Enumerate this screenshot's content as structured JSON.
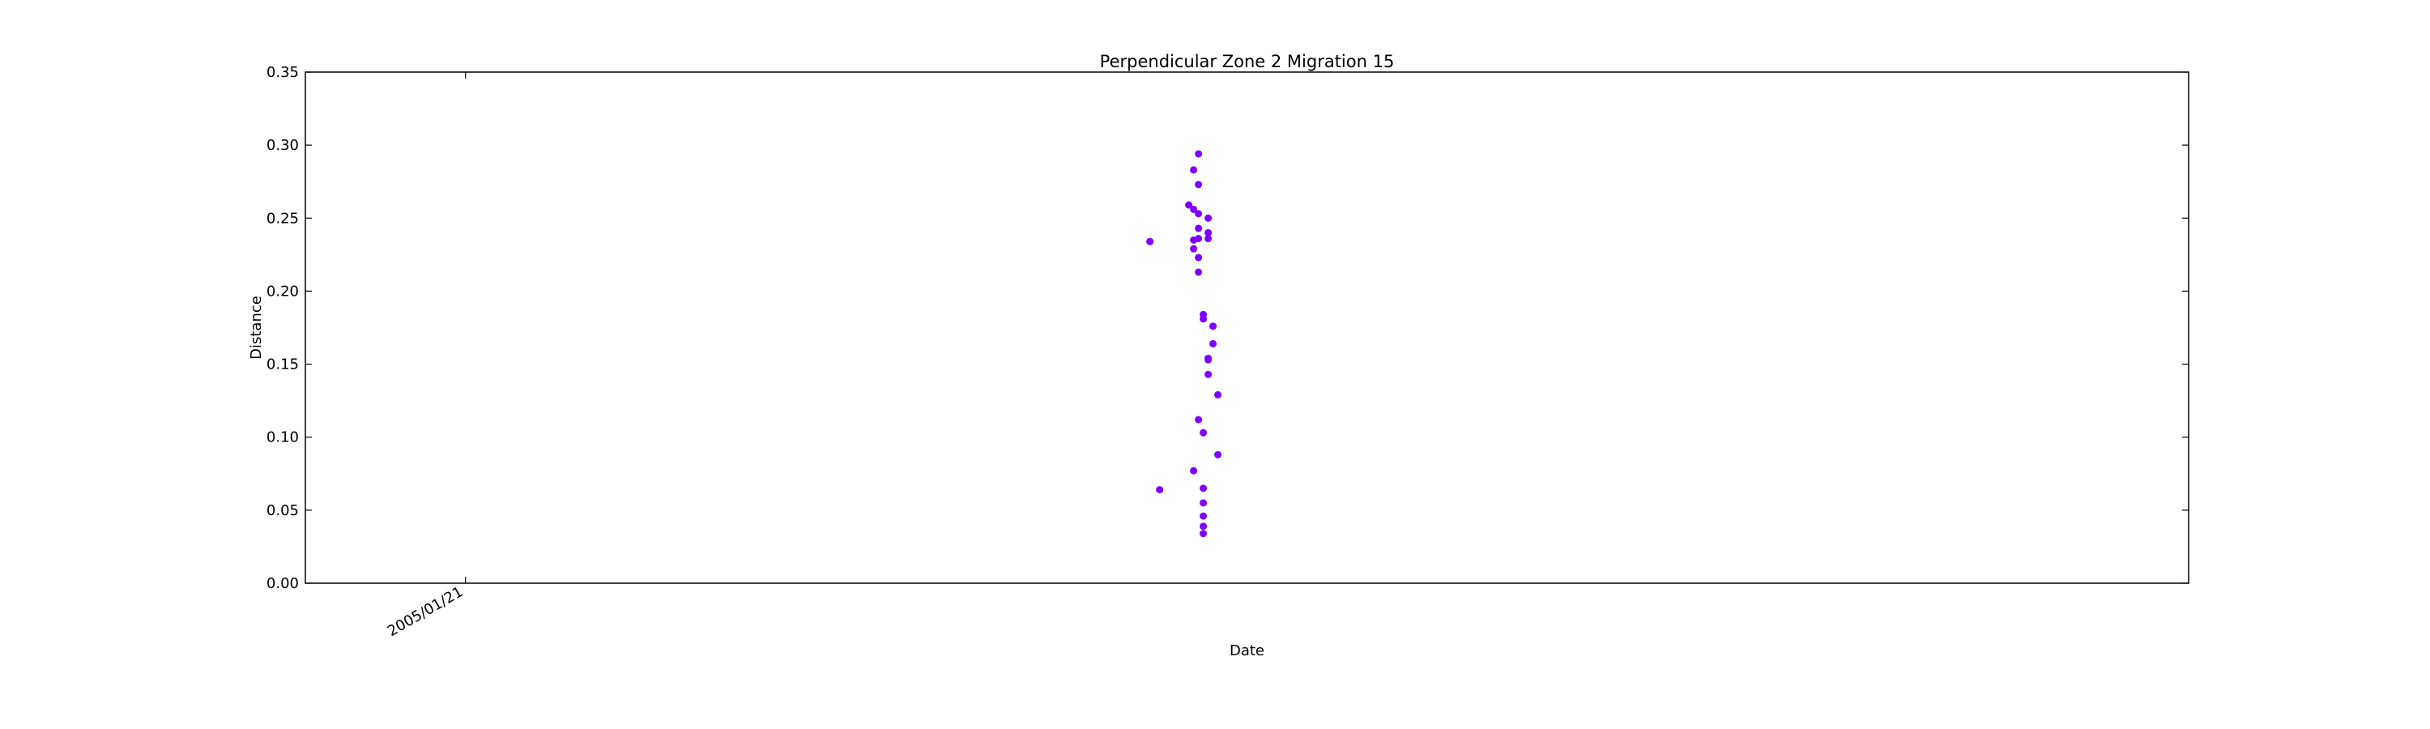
{
  "chart_data": {
    "type": "scatter",
    "title": "Perpendicular Zone 2 Migration 15",
    "xlabel": "Date",
    "ylabel": "Distance",
    "ylim": [
      0,
      0.35
    ],
    "y_ticks": [
      "0.00",
      "0.05",
      "0.10",
      "0.15",
      "0.20",
      "0.25",
      "0.30",
      "0.35"
    ],
    "x_ticks": [
      {
        "date": "2005-01-21",
        "label": "2005/01/21"
      }
    ],
    "xlim": [
      "2004-12-19",
      "2006-01-11"
    ],
    "grid": false,
    "marker_color": "#7f00ff",
    "points": [
      {
        "x": "2005-06-11",
        "y": 0.234
      },
      {
        "x": "2005-06-13",
        "y": 0.064
      },
      {
        "x": "2005-06-19",
        "y": 0.259
      },
      {
        "x": "2005-06-20",
        "y": 0.283
      },
      {
        "x": "2005-06-20",
        "y": 0.077
      },
      {
        "x": "2005-06-20",
        "y": 0.235
      },
      {
        "x": "2005-06-20",
        "y": 0.229
      },
      {
        "x": "2005-06-20",
        "y": 0.256
      },
      {
        "x": "2005-06-21",
        "y": 0.253
      },
      {
        "x": "2005-06-21",
        "y": 0.273
      },
      {
        "x": "2005-06-21",
        "y": 0.294
      },
      {
        "x": "2005-06-21",
        "y": 0.112
      },
      {
        "x": "2005-06-21",
        "y": 0.213
      },
      {
        "x": "2005-06-21",
        "y": 0.243
      },
      {
        "x": "2005-06-21",
        "y": 0.236
      },
      {
        "x": "2005-06-21",
        "y": 0.223
      },
      {
        "x": "2005-06-22",
        "y": 0.181
      },
      {
        "x": "2005-06-22",
        "y": 0.184
      },
      {
        "x": "2005-06-22",
        "y": 0.103
      },
      {
        "x": "2005-06-22",
        "y": 0.065
      },
      {
        "x": "2005-06-22",
        "y": 0.055
      },
      {
        "x": "2005-06-22",
        "y": 0.046
      },
      {
        "x": "2005-06-22",
        "y": 0.039
      },
      {
        "x": "2005-06-22",
        "y": 0.034
      },
      {
        "x": "2005-06-23",
        "y": 0.154
      },
      {
        "x": "2005-06-23",
        "y": 0.153
      },
      {
        "x": "2005-06-23",
        "y": 0.143
      },
      {
        "x": "2005-06-23",
        "y": 0.236
      },
      {
        "x": "2005-06-23",
        "y": 0.25
      },
      {
        "x": "2005-06-23",
        "y": 0.24
      },
      {
        "x": "2005-06-24",
        "y": 0.176
      },
      {
        "x": "2005-06-24",
        "y": 0.164
      },
      {
        "x": "2005-06-25",
        "y": 0.129
      },
      {
        "x": "2005-06-25",
        "y": 0.088
      }
    ]
  }
}
